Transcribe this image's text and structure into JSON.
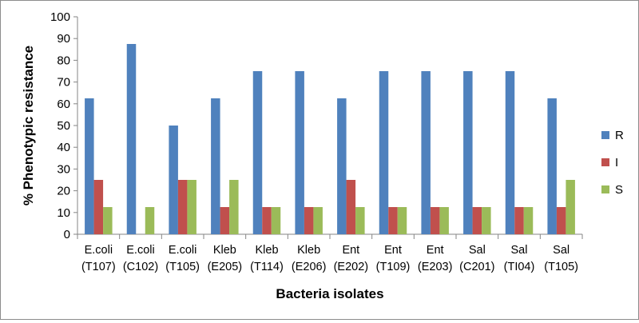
{
  "chart_data": {
    "type": "bar",
    "title": "",
    "xlabel": "Bacteria isolates",
    "ylabel": "% Phenotypic resistance",
    "ylim": [
      0,
      100
    ],
    "ytick_step": 10,
    "grid": false,
    "legend_position": "right",
    "categories": [
      [
        "E.coli",
        "(T107)"
      ],
      [
        "E.coli",
        "(C102)"
      ],
      [
        "E.coli",
        "(T105)"
      ],
      [
        "Kleb",
        "(E205)"
      ],
      [
        "Kleb",
        "(T114)"
      ],
      [
        "Kleb",
        "(E206)"
      ],
      [
        "Ent",
        "(E202)"
      ],
      [
        "Ent",
        "(T109)"
      ],
      [
        "Ent",
        "(E203)"
      ],
      [
        "Sal",
        "(C201)"
      ],
      [
        "Sal",
        "(TI04)"
      ],
      [
        "Sal",
        "(T105)"
      ]
    ],
    "series": [
      {
        "name": "R",
        "color": "#4f81bd",
        "values": [
          62.5,
          87.5,
          50,
          62.5,
          75,
          75,
          62.5,
          75,
          75,
          75,
          75,
          62.5
        ]
      },
      {
        "name": "I",
        "color": "#c0504d",
        "values": [
          25,
          0,
          25,
          12.5,
          12.5,
          12.5,
          25,
          12.5,
          12.5,
          12.5,
          12.5,
          12.5
        ]
      },
      {
        "name": "S",
        "color": "#9bbb59",
        "values": [
          12.5,
          12.5,
          25,
          25,
          12.5,
          12.5,
          12.5,
          12.5,
          12.5,
          12.5,
          12.5,
          25
        ]
      }
    ]
  }
}
